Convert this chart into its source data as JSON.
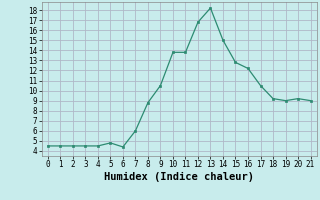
{
  "x": [
    0,
    1,
    2,
    3,
    4,
    5,
    6,
    7,
    8,
    9,
    10,
    11,
    12,
    13,
    14,
    15,
    16,
    17,
    18,
    19,
    20,
    21
  ],
  "y": [
    4.5,
    4.5,
    4.5,
    4.5,
    4.5,
    4.8,
    4.4,
    6.0,
    8.8,
    10.5,
    13.8,
    13.8,
    16.8,
    18.2,
    15.0,
    12.8,
    12.2,
    10.5,
    9.2,
    9.0,
    9.2,
    9.0
  ],
  "line_color": "#2d8b72",
  "marker_color": "#2d8b72",
  "bg_color": "#c8ecec",
  "grid_color": "#b0b8c8",
  "xlabel": "Humidex (Indice chaleur)",
  "xlim": [
    -0.5,
    21.5
  ],
  "ylim": [
    3.5,
    18.8
  ],
  "yticks": [
    4,
    5,
    6,
    7,
    8,
    9,
    10,
    11,
    12,
    13,
    14,
    15,
    16,
    17,
    18
  ],
  "xticks": [
    0,
    1,
    2,
    3,
    4,
    5,
    6,
    7,
    8,
    9,
    10,
    11,
    12,
    13,
    14,
    15,
    16,
    17,
    18,
    19,
    20,
    21
  ],
  "tick_fontsize": 5.5,
  "label_fontsize": 7.5
}
